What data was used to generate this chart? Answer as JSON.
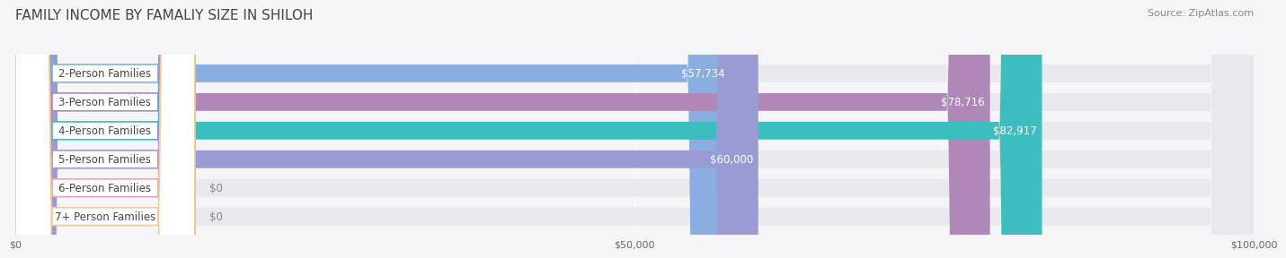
{
  "title": "FAMILY INCOME BY FAMALIY SIZE IN SHILOH",
  "source": "Source: ZipAtlas.com",
  "categories": [
    "2-Person Families",
    "3-Person Families",
    "4-Person Families",
    "5-Person Families",
    "6-Person Families",
    "7+ Person Families"
  ],
  "values": [
    57734,
    78716,
    82917,
    60000,
    0,
    0
  ],
  "bar_colors": [
    "#8aaee0",
    "#b088b8",
    "#3dbdbd",
    "#9b9bd4",
    "#f5a0a8",
    "#f5c89a"
  ],
  "bar_bg_color": "#e8e8ee",
  "xmax": 100000,
  "xticks": [
    0,
    50000,
    100000
  ],
  "xticklabels": [
    "$0",
    "$50,000",
    "$100,000"
  ],
  "title_fontsize": 11,
  "source_fontsize": 8,
  "bar_height": 0.62,
  "label_fontsize": 8.5,
  "value_fontsize": 8.5,
  "background_color": "#f5f5f7"
}
